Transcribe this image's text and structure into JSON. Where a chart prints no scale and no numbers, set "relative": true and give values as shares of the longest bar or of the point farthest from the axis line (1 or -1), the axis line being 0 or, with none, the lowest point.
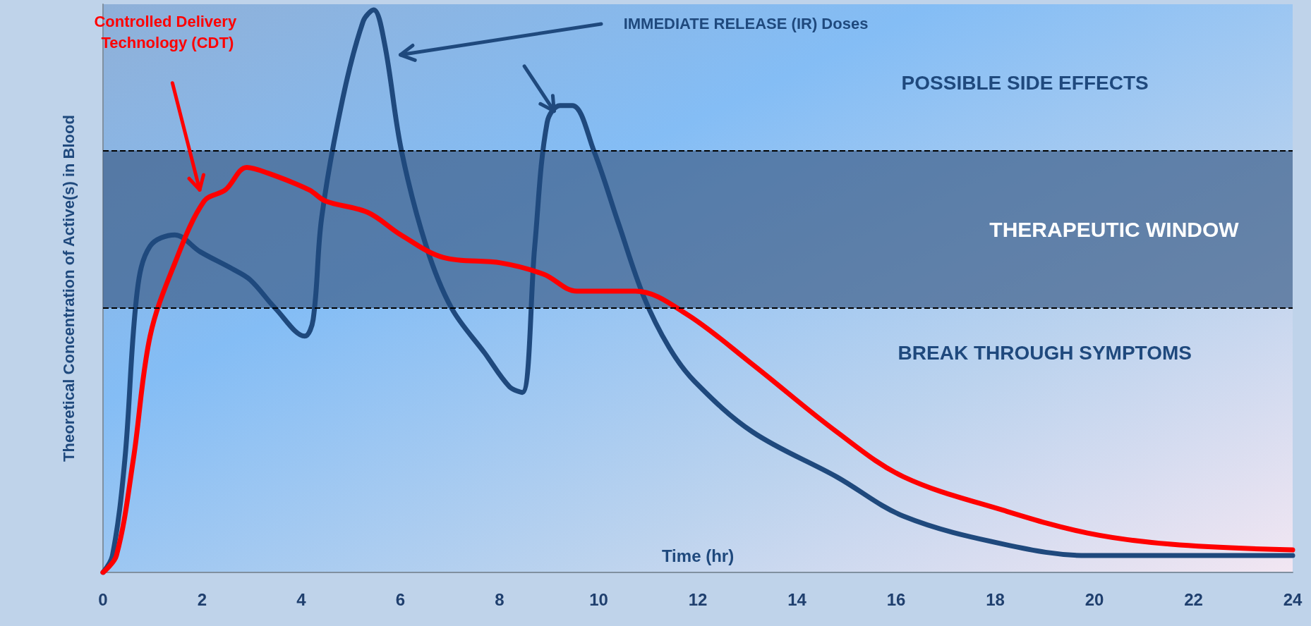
{
  "chart_data": {
    "type": "line",
    "relative": true,
    "xlabel": "Time (hr)",
    "ylabel": "Theoretical Concentration of Active(s) in Blood",
    "xlim": [
      0,
      24
    ],
    "xticks": [
      0,
      2,
      4,
      6,
      8,
      10,
      12,
      14,
      16,
      18,
      20,
      22,
      24
    ],
    "grid": false,
    "legend": false,
    "marker": "none",
    "line_style": "solid",
    "series": [
      {
        "name": "IMMEDIATE RELEASE (IR) Doses",
        "color": "#1f497d",
        "x": [
          0,
          0.19,
          0.44,
          0.69,
          0.95,
          1.45,
          1.96,
          2.6,
          2.97,
          3.47,
          4.07,
          4.24,
          4.41,
          4.83,
          5.25,
          5.46,
          5.68,
          6.02,
          6.52,
          7.03,
          7.7,
          8.2,
          8.46,
          8.71,
          8.96,
          9.22,
          9.47,
          9.9,
          10.4,
          10.91,
          11.42,
          11.93,
          13.1,
          14.8,
          16.15,
          18.18,
          19.86,
          21.55,
          24
        ],
        "values": [
          0,
          0.03,
          0.2,
          0.5,
          0.58,
          0.6,
          0.57,
          0.54,
          0.52,
          0.47,
          0.42,
          0.45,
          0.63,
          0.84,
          0.98,
          1,
          0.94,
          0.75,
          0.58,
          0.47,
          0.39,
          0.33,
          0.32,
          0.58,
          0.8,
          0.83,
          0.83,
          0.75,
          0.62,
          0.49,
          0.4,
          0.34,
          0.25,
          0.17,
          0.1,
          0.05,
          0.03,
          0.03,
          0.03
        ]
      },
      {
        "name": "Controlled Delivery Technology (CDT)",
        "color": "#ff0000",
        "x": [
          0,
          0.27,
          0.61,
          0.95,
          1.45,
          2.04,
          2.47,
          2.9,
          3.32,
          4.16,
          4.49,
          5.34,
          6.01,
          6.86,
          8.04,
          8.89,
          9.56,
          10.74,
          11.76,
          13.1,
          14.8,
          16.15,
          18.18,
          19.86,
          21.55,
          24
        ],
        "values": [
          0,
          0.03,
          0.2,
          0.42,
          0.55,
          0.66,
          0.68,
          0.72,
          0.71,
          0.68,
          0.66,
          0.64,
          0.6,
          0.56,
          0.55,
          0.53,
          0.5,
          0.5,
          0.46,
          0.37,
          0.25,
          0.17,
          0.11,
          0.07,
          0.05,
          0.04
        ]
      }
    ],
    "bands": [
      {
        "axis": "y",
        "from": 0.47,
        "to": 0.75,
        "label": "THERAPEUTIC WINDOW",
        "color": "#3f5f8a"
      }
    ],
    "ref_lines": [
      {
        "axis": "y",
        "value": 0.75,
        "line_style": "dashed",
        "color": "#000000"
      },
      {
        "axis": "y",
        "value": 0.47,
        "line_style": "dashed",
        "color": "#000000"
      }
    ],
    "annotations": [
      "POSSIBLE SIDE EFFECTS",
      "BREAK THROUGH SYMPTOMS"
    ]
  }
}
